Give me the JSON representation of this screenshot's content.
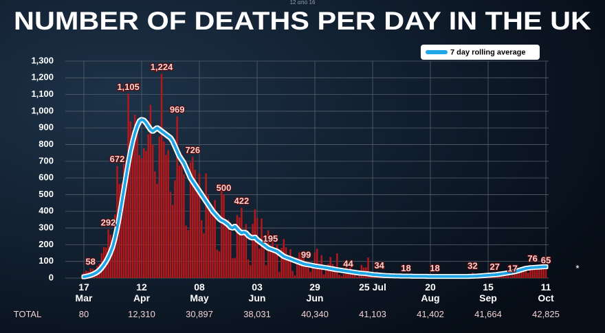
{
  "chart_data": {
    "type": "bar",
    "title": "NUMBER OF DEATHS PER DAY IN THE UK",
    "page_counter": "12 από 16",
    "footnote": "*",
    "legend": "top-right",
    "grid": true,
    "ylim": [
      0,
      1300
    ],
    "yticks": [
      0,
      100,
      200,
      300,
      400,
      500,
      600,
      700,
      800,
      900,
      {
        "value": 1000,
        "label": "1,000"
      },
      {
        "value": 1100,
        "label": "1,100"
      },
      {
        "value": 1200,
        "label": "1,200"
      },
      {
        "value": 1300,
        "label": "1,300"
      }
    ],
    "categories": [
      "17 Mar",
      null,
      null,
      null,
      null,
      null,
      null,
      null,
      null,
      null,
      null,
      null,
      null,
      null,
      null,
      null,
      null,
      null,
      null,
      null,
      null,
      null,
      null,
      null,
      null,
      null,
      "12 Apr",
      null,
      null,
      null,
      null,
      null,
      null,
      null,
      null,
      null,
      null,
      null,
      null,
      null,
      null,
      null,
      null,
      null,
      null,
      null,
      null,
      null,
      null,
      null,
      null,
      null,
      "08 May",
      null,
      null,
      null,
      null,
      null,
      null,
      null,
      null,
      null,
      null,
      null,
      null,
      null,
      null,
      null,
      null,
      null,
      null,
      null,
      null,
      null,
      null,
      null,
      null,
      null,
      "03 Jun",
      null,
      null,
      null,
      null,
      null,
      null,
      null,
      null,
      null,
      null,
      null,
      null,
      null,
      null,
      null,
      null,
      null,
      null,
      null,
      null,
      null,
      null,
      null,
      null,
      null,
      "29 Jun",
      null,
      null,
      null,
      null,
      null,
      null,
      null,
      null,
      null,
      null,
      null,
      null,
      null,
      null,
      null,
      null,
      null,
      null,
      null,
      null,
      null,
      null,
      null,
      null,
      null,
      "25 Jul",
      null,
      null,
      null,
      null,
      null,
      null,
      null,
      null,
      null,
      null,
      null,
      null,
      null,
      null,
      null,
      null,
      null,
      null,
      null,
      null,
      null,
      null,
      null,
      null,
      null,
      "20 Aug",
      null,
      null,
      null,
      null,
      null,
      null,
      null,
      null,
      null,
      null,
      null,
      null,
      null,
      null,
      null,
      null,
      null,
      null,
      null,
      null,
      null,
      null,
      null,
      null,
      null,
      "15 Sep",
      null,
      null,
      null,
      null,
      null,
      null,
      null,
      null,
      null,
      null,
      null,
      null,
      null,
      null,
      null,
      null,
      null,
      null,
      null,
      null,
      null,
      null,
      null,
      null,
      null,
      "11 Oct"
    ],
    "series": [
      {
        "type": "bar",
        "color": "#b3191c",
        "values": [
          33,
          45,
          40,
          58,
          56,
          48,
          74,
          87,
          149,
          186,
          183,
          292,
          260,
          209,
          381,
          672,
          563,
          569,
          684,
          708,
          1105,
          938,
          881,
          980,
          917,
          737,
          717,
          778,
          761,
          861,
          1038,
          800,
          639,
          565,
          847,
          1224,
          818,
          738,
          768,
          517,
          438,
          586,
          969,
          674,
          739,
          621,
          315,
          288,
          693,
          726,
          649,
          539,
          626,
          346,
          269,
          627,
          494,
          428,
          384,
          468,
          170,
          160,
          545,
          500,
          338,
          351,
          282,
          118,
          121,
          377,
          363,
          422,
          256,
          324,
          111,
          77,
          324,
          412,
          359,
          176,
          357,
          204,
          77,
          286,
          195,
          245,
          151,
          202,
          36,
          181,
          233,
          184,
          135,
          173,
          43,
          15,
          122,
          154,
          135,
          149,
          99,
          100,
          36,
          67,
          155,
          176,
          89,
          137,
          22,
          48,
          85,
          126,
          85,
          66,
          148,
          21,
          11,
          25,
          85,
          44,
          66,
          40,
          21,
          8,
          18,
          79,
          63,
          64,
          123,
          14,
          7,
          11,
          38,
          34,
          23,
          12,
          8,
          7,
          14,
          20,
          18,
          17,
          12,
          3,
          4,
          18,
          13,
          12,
          10,
          5,
          3,
          9,
          15,
          20,
          12,
          11,
          6,
          2,
          18,
          16,
          6,
          16,
          9,
          1,
          2,
          12,
          2,
          12,
          10,
          12,
          2,
          3,
          8,
          14,
          6,
          32,
          9,
          3,
          8,
          21,
          20,
          27,
          21,
          9,
          5,
          27,
          20,
          40,
          21,
          27,
          11,
          18,
          11,
          17,
          37,
          40,
          34,
          66,
          59,
          71,
          33,
          59,
          76,
          71,
          67,
          77,
          81,
          59,
          65
        ],
        "value_labels": [
          null,
          null,
          null,
          "58",
          null,
          null,
          null,
          null,
          null,
          null,
          null,
          "292",
          null,
          null,
          null,
          "672",
          null,
          null,
          null,
          null,
          "1,105",
          null,
          null,
          null,
          null,
          null,
          null,
          null,
          null,
          null,
          null,
          null,
          null,
          null,
          null,
          "1,224",
          null,
          null,
          null,
          null,
          null,
          null,
          "969",
          null,
          null,
          null,
          null,
          null,
          null,
          "726",
          null,
          null,
          null,
          null,
          null,
          null,
          null,
          null,
          null,
          null,
          null,
          null,
          null,
          "500",
          null,
          null,
          null,
          null,
          null,
          null,
          null,
          "422",
          null,
          null,
          null,
          null,
          null,
          null,
          null,
          null,
          null,
          null,
          null,
          null,
          "195",
          null,
          null,
          null,
          null,
          null,
          null,
          null,
          null,
          null,
          null,
          null,
          null,
          null,
          null,
          null,
          "99",
          null,
          null,
          null,
          null,
          null,
          null,
          null,
          null,
          null,
          null,
          null,
          null,
          null,
          null,
          null,
          null,
          null,
          null,
          "44",
          null,
          null,
          null,
          null,
          null,
          null,
          null,
          null,
          null,
          null,
          null,
          null,
          null,
          "34",
          null,
          null,
          null,
          null,
          null,
          null,
          null,
          null,
          null,
          null,
          null,
          "18",
          null,
          null,
          null,
          null,
          null,
          null,
          null,
          null,
          null,
          null,
          null,
          null,
          "18",
          null,
          null,
          null,
          null,
          null,
          null,
          null,
          null,
          null,
          null,
          null,
          null,
          null,
          null,
          null,
          null,
          "32",
          null,
          null,
          null,
          null,
          null,
          null,
          null,
          null,
          null,
          "27",
          null,
          null,
          null,
          null,
          null,
          null,
          null,
          "17",
          null,
          null,
          null,
          null,
          null,
          null,
          null,
          null,
          "76",
          null,
          null,
          null,
          null,
          null,
          "65"
        ]
      },
      {
        "type": "line",
        "name": "7 day rolling average",
        "color": "#1ea6e6",
        "values": [
          8,
          10,
          13,
          17,
          22,
          28,
          36,
          47,
          62,
          80,
          100,
          125,
          155,
          190,
          240,
          300,
          370,
          450,
          530,
          610,
          690,
          760,
          820,
          870,
          910,
          940,
          950,
          945,
          930,
          910,
          890,
          880,
          890,
          900,
          890,
          880,
          870,
          860,
          850,
          840,
          820,
          790,
          760,
          730,
          710,
          690,
          660,
          630,
          600,
          580,
          560,
          540,
          520,
          500,
          480,
          460,
          440,
          420,
          400,
          385,
          370,
          355,
          345,
          340,
          330,
          320,
          305,
          300,
          310,
          295,
          280,
          270,
          275,
          270,
          255,
          245,
          240,
          245,
          230,
          220,
          210,
          200,
          190,
          180,
          175,
          170,
          165,
          160,
          150,
          140,
          130,
          125,
          120,
          115,
          110,
          105,
          100,
          95,
          90,
          85,
          82,
          80,
          78,
          75,
          72,
          70,
          68,
          66,
          64,
          62,
          60,
          57,
          55,
          52,
          50,
          48,
          46,
          44,
          42,
          40,
          38,
          36,
          34,
          32,
          30,
          29,
          28,
          27,
          25,
          23,
          21,
          20,
          19,
          18,
          17,
          16,
          15,
          15,
          14,
          14,
          13,
          13,
          13,
          12,
          12,
          12,
          12,
          12,
          11,
          11,
          11,
          11,
          11,
          11,
          11,
          10,
          10,
          10,
          10,
          10,
          10,
          10,
          10,
          10,
          10,
          10,
          10,
          10,
          10,
          10,
          10,
          10,
          10,
          10,
          11,
          11,
          12,
          12,
          13,
          14,
          15,
          16,
          17,
          18,
          19,
          20,
          21,
          23,
          25,
          27,
          29,
          31,
          33,
          36,
          39,
          42,
          46,
          50,
          54,
          58,
          60,
          62,
          63,
          64,
          65,
          66,
          67,
          68,
          68
        ]
      }
    ],
    "totals": {
      "label": "TOTAL",
      "values": [
        "80",
        "12,310",
        "30,897",
        "38,031",
        "40,340",
        "41,103",
        "41,402",
        "41,664",
        "42,825"
      ]
    }
  }
}
